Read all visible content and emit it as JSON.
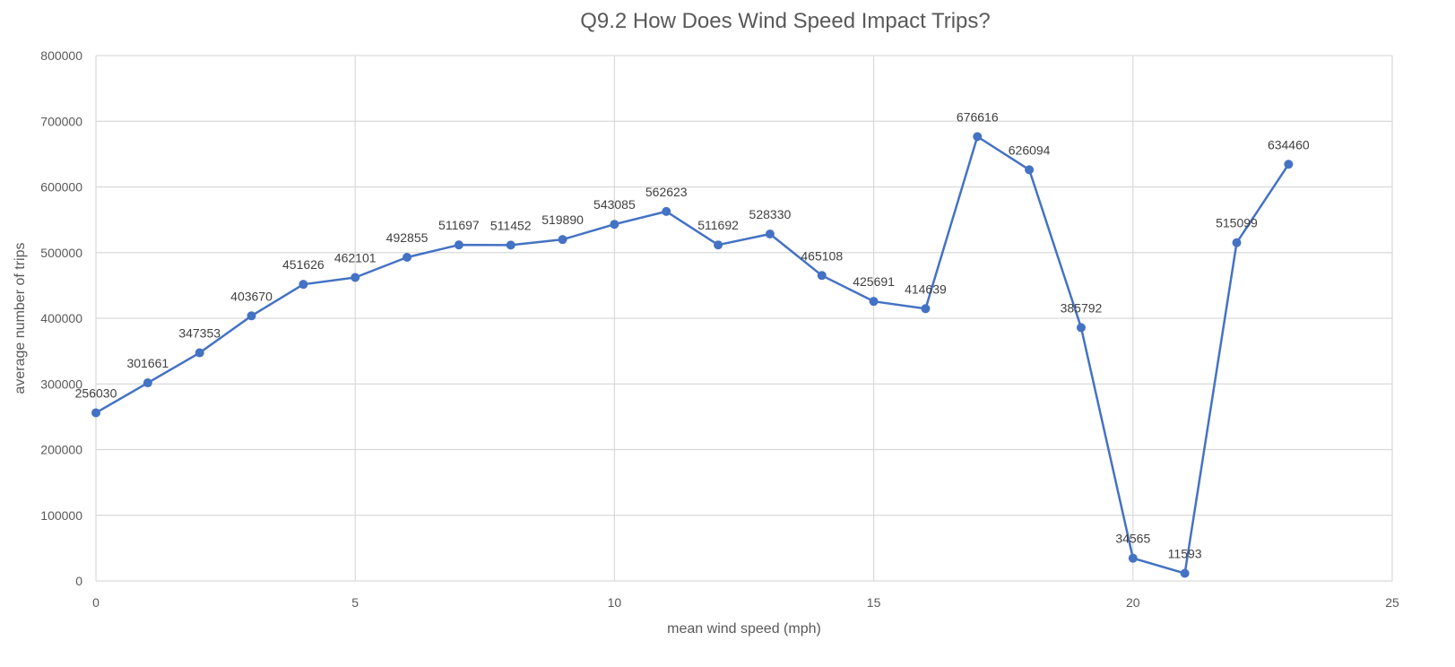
{
  "chart_data": {
    "type": "scatter",
    "title": "Q9.2  How Does Wind Speed Impact Trips?",
    "xlabel": "mean wind speed (mph)",
    "ylabel": "average number of trips",
    "xlim": [
      0,
      25
    ],
    "ylim": [
      0,
      800000
    ],
    "x_ticks": [
      0,
      5,
      10,
      15,
      20,
      25
    ],
    "y_ticks": [
      0,
      100000,
      200000,
      300000,
      400000,
      500000,
      600000,
      700000,
      800000
    ],
    "grid": true,
    "legend": "none",
    "line_color": "#4472C4",
    "grid_color": "#D9D9D9",
    "series": [
      {
        "x": [
          0,
          1,
          2,
          3,
          4,
          5,
          6,
          7,
          8,
          9,
          10,
          11,
          12,
          13,
          14,
          15,
          16,
          17,
          18,
          19,
          20,
          21,
          22,
          23
        ],
        "y": [
          256030,
          301661,
          347353,
          403670,
          451626,
          462101,
          492855,
          511697,
          511452,
          519890,
          543085,
          562623,
          511692,
          528330,
          465108,
          425691,
          414639,
          676616,
          626094,
          385792,
          34565,
          11593,
          515099,
          634460
        ],
        "labels": [
          "256030",
          "301661",
          "347353",
          "403670",
          "451626",
          "462101",
          "492855",
          "511697",
          "511452",
          "519890",
          "543085",
          "562623",
          "511692",
          "528330",
          "465108",
          "425691",
          "414639",
          "676616",
          "626094",
          "385792",
          "34565",
          "11593",
          "515099",
          "634460"
        ]
      }
    ]
  }
}
